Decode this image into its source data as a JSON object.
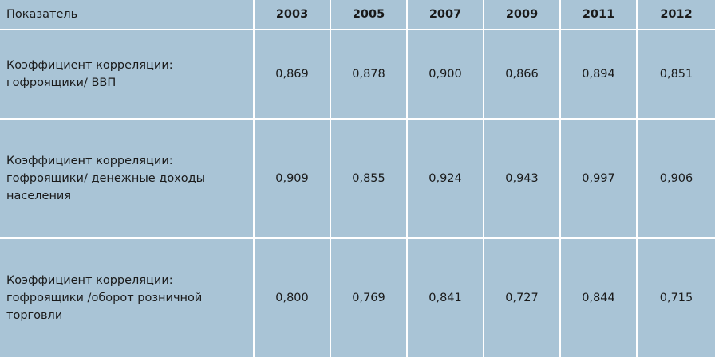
{
  "table": {
    "header": [
      "Показатель",
      "2003",
      "2005",
      "2007",
      "2009",
      "2011",
      "2012"
    ],
    "rows": [
      [
        "Коэффициент корреляции:\nгофроящики/ ВВП",
        "0,869",
        "0,878",
        "0,900",
        "0,866",
        "0,894",
        "0,851"
      ],
      [
        "Коэффициент корреляции:\nгофроящики/ денежные доходы\nнаселения",
        "0,909",
        "0,855",
        "0,924",
        "0,943",
        "0,997",
        "0,906"
      ],
      [
        "Коэффициент корреляции:\nгофроящики /оборот розничной\nторговли",
        "0,800",
        "0,769",
        "0,841",
        "0,727",
        "0,844",
        "0,715"
      ]
    ]
  }
}
